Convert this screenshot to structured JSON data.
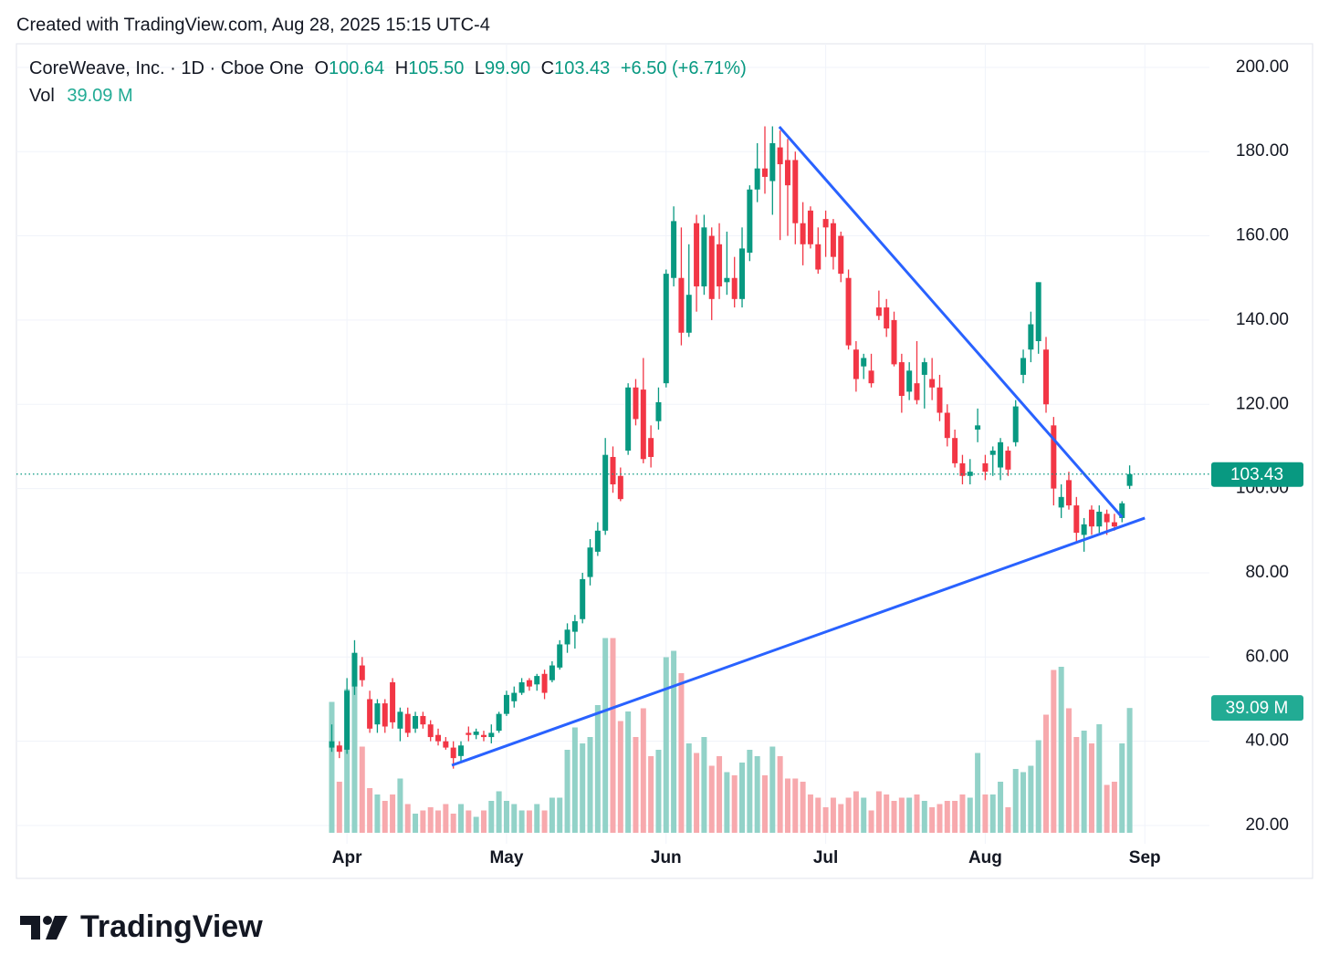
{
  "header": {
    "created": "Created with TradingView.com, Aug 28, 2025 15:15 UTC-4"
  },
  "chart_data": {
    "type": "candlestick",
    "legend": {
      "symbol": "CoreWeave, Inc. · 1D · Cboe One",
      "open_key": "O",
      "open": "100.64",
      "high_key": "H",
      "high": "105.50",
      "low_key": "L",
      "low": "99.90",
      "close_key": "C",
      "close": "103.43",
      "change": "+6.50 (+6.71%)",
      "volume_key": "Vol",
      "volume": "39.09 M"
    },
    "open": [
      38.5,
      39,
      38,
      53,
      58,
      50,
      44,
      49,
      54,
      43,
      46.5,
      43,
      46,
      44,
      41.5,
      40,
      38.5,
      36.5,
      42,
      41.5,
      41.5,
      41,
      42.5,
      46.5,
      49.5,
      51.5,
      54.5,
      53.5,
      56,
      54.5,
      57.5,
      63,
      66,
      69,
      79,
      85,
      90,
      107.5,
      103,
      109,
      124,
      123.5,
      112,
      116,
      125,
      150,
      150,
      137,
      163,
      148,
      160,
      158,
      149,
      150,
      145,
      156,
      171,
      176,
      173,
      181,
      178,
      178,
      163,
      166,
      158,
      164,
      163,
      160,
      150,
      133,
      129,
      128,
      143,
      143,
      140,
      130,
      123,
      125,
      127,
      126,
      124,
      118,
      112,
      106,
      103,
      114,
      106,
      108,
      105,
      109,
      111,
      127,
      133,
      135,
      133,
      115,
      95.5,
      102,
      96,
      89,
      95,
      91,
      94,
      92,
      93,
      100.64
    ],
    "high": [
      44,
      40,
      55,
      64,
      60,
      52,
      50,
      50,
      55,
      48,
      48,
      47,
      47,
      45,
      43,
      41,
      40,
      40,
      43.5,
      43,
      42.5,
      44,
      47,
      52,
      53,
      55,
      55,
      56,
      57,
      59,
      64,
      68,
      70,
      80,
      88,
      92,
      112,
      110,
      105,
      125,
      126,
      131,
      115,
      124,
      152,
      167,
      162,
      158,
      165,
      165,
      162,
      163,
      161,
      155,
      162,
      172,
      182,
      186,
      186,
      185,
      183,
      180,
      168,
      167,
      162,
      166,
      164,
      161,
      152,
      135,
      132,
      132,
      147,
      145,
      142,
      132,
      130,
      135,
      131,
      131,
      127,
      120,
      114,
      108,
      107,
      119,
      108,
      110,
      112,
      110,
      121,
      133,
      142,
      149,
      136,
      117,
      101,
      104,
      98,
      93,
      96,
      96,
      95,
      94,
      97,
      105.5
    ],
    "low": [
      37.5,
      36,
      37,
      51,
      53,
      42,
      42,
      42,
      43,
      40,
      41,
      42,
      43,
      40,
      39,
      38,
      33.5,
      35,
      40,
      40.5,
      40,
      39.5,
      42,
      46,
      48,
      51,
      52,
      52,
      50,
      54,
      57,
      61,
      62,
      68,
      77,
      84,
      89,
      99,
      97,
      108,
      115,
      106,
      105,
      114,
      124,
      148,
      134,
      136,
      142,
      146,
      140,
      145,
      146,
      143,
      143,
      154,
      168,
      170,
      165,
      159,
      160,
      158,
      153,
      157,
      151,
      155,
      152,
      149,
      133,
      123,
      126,
      124,
      140,
      136,
      129,
      118,
      121,
      120,
      119,
      121,
      116,
      110,
      105,
      101,
      101,
      111,
      102,
      103,
      102,
      103,
      110,
      125,
      130,
      132,
      118,
      96,
      93,
      95,
      87,
      85,
      89,
      89.5,
      89,
      90,
      92,
      99.9
    ],
    "close": [
      40,
      37.5,
      52,
      61,
      54.5,
      43,
      49,
      43.5,
      44.5,
      47,
      42,
      46,
      44,
      41,
      40,
      38.5,
      36,
      39,
      41.5,
      42.3,
      41,
      42,
      46.5,
      51,
      51.5,
      54,
      53,
      55.5,
      51.5,
      58,
      63,
      66.5,
      68.5,
      78.5,
      86,
      90,
      108,
      101,
      97.5,
      124,
      116.5,
      107,
      107.5,
      120.5,
      151,
      163.5,
      137,
      146,
      148,
      162,
      145,
      148,
      150,
      145,
      157,
      171,
      176,
      174,
      182,
      177,
      172,
      163,
      158,
      158,
      152,
      162,
      155,
      151,
      134,
      126,
      131,
      125,
      141,
      138,
      129.5,
      122,
      128,
      121,
      130,
      124,
      118,
      112,
      106,
      103,
      104,
      115,
      104,
      109,
      111,
      104.5,
      119.5,
      131,
      139,
      149,
      120,
      100,
      98,
      96,
      89.5,
      91.5,
      91,
      94.5,
      92,
      91,
      96.5,
      103.43
    ],
    "volume": [
      41,
      16,
      45,
      56,
      27,
      14,
      12,
      10,
      12,
      17,
      9,
      6,
      7,
      8,
      7,
      9,
      6,
      9,
      7,
      5,
      7,
      10,
      13,
      10,
      9,
      7,
      7,
      9,
      7,
      11,
      11,
      26,
      33,
      28,
      30,
      40,
      61,
      61,
      35,
      38,
      30,
      39,
      24,
      26,
      55,
      57,
      50,
      28,
      25,
      30,
      21,
      24,
      19,
      18,
      22,
      26,
      24,
      18,
      27,
      24,
      17,
      17,
      16,
      12,
      11,
      8,
      11,
      9,
      11,
      13,
      11,
      7,
      13,
      12,
      10,
      11,
      11,
      12,
      10,
      8,
      9,
      10,
      10,
      12,
      11,
      25,
      12,
      12,
      16,
      8,
      20,
      19,
      21,
      29,
      37,
      51,
      52,
      39,
      30,
      32,
      28,
      34,
      15,
      16,
      28,
      39.09
    ],
    "up_color": "#089981",
    "down_color": "#f23645",
    "volume_up_color": "#92d2c8",
    "volume_down_color": "#f7a9ad",
    "xlim": [
      -41.5,
      115.5
    ],
    "xticks": [
      {
        "value": 2,
        "label": "Apr"
      },
      {
        "value": 23,
        "label": "May"
      },
      {
        "value": 44,
        "label": "Jun"
      },
      {
        "value": 65,
        "label": "Jul"
      },
      {
        "value": 86,
        "label": "Aug"
      },
      {
        "value": 107,
        "label": "Sep"
      }
    ],
    "ylim": [
      18.27,
      205.6
    ],
    "yticks": [
      {
        "value": 20,
        "label": "20.00"
      },
      {
        "value": 40,
        "label": "40.00"
      },
      {
        "value": 60,
        "label": "60.00"
      },
      {
        "value": 80,
        "label": "80.00"
      },
      {
        "value": 100,
        "label": "100.00"
      },
      {
        "value": 120,
        "label": "120.00"
      },
      {
        "value": 140,
        "label": "140.00"
      },
      {
        "value": 160,
        "label": "160.00"
      },
      {
        "value": 180,
        "label": "180.00"
      },
      {
        "value": 200,
        "label": "200.00"
      }
    ],
    "y2lim": [
      0,
      100
    ],
    "grid": true,
    "trendline_color": "#2962ff",
    "trendlines": [
      {
        "x": [
          58.9,
          104
        ],
        "y": [
          185.9,
          93.2
        ]
      },
      {
        "x": [
          15.8,
          107
        ],
        "y": [
          34.3,
          93
        ]
      }
    ]
  },
  "footer": {
    "logo": "TradingView"
  }
}
